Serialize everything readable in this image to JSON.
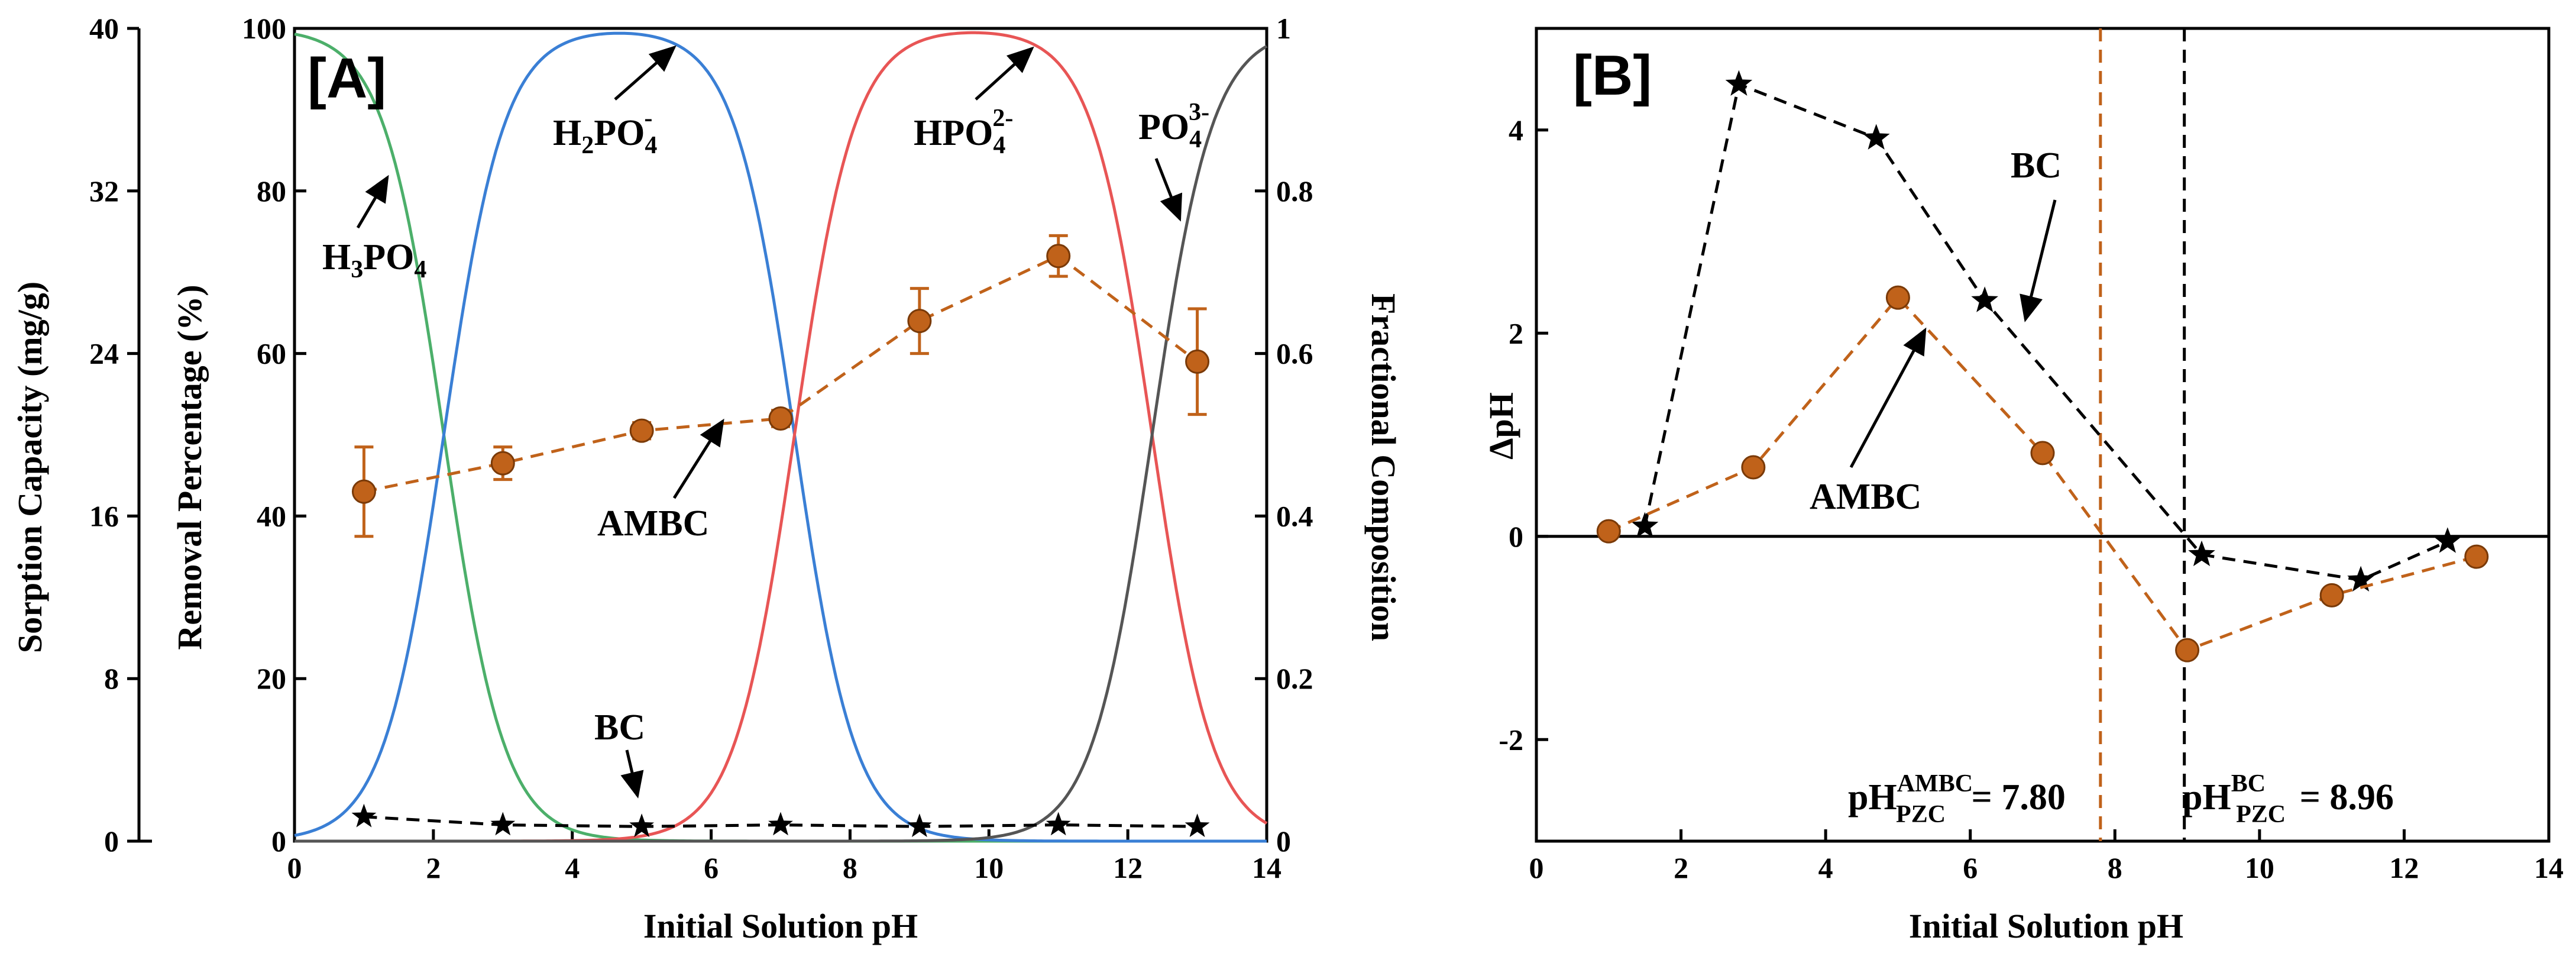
{
  "chart_data": [
    {
      "panel": "A",
      "type": "line",
      "panel_label": "[A]",
      "xlabel": "Initial Solution pH",
      "x_ticks": [
        0,
        2,
        4,
        6,
        8,
        10,
        12,
        14
      ],
      "xlim": [
        0,
        14
      ],
      "y_axes": {
        "sorption": {
          "label": "Sorption Capacity (mg/g)",
          "ticks": [
            0,
            8,
            16,
            24,
            32,
            40
          ],
          "range": [
            0,
            40
          ]
        },
        "removal": {
          "label": "Removal Percentage (%)",
          "ticks": [
            0,
            20,
            40,
            60,
            80,
            100
          ],
          "range": [
            0,
            100
          ]
        },
        "fraction": {
          "label": "Fractional Composition",
          "ticks": [
            0,
            0.2,
            0.4,
            0.6,
            0.8,
            1
          ],
          "range": [
            0,
            1
          ]
        }
      },
      "speciation": {
        "pKa": [
          2.15,
          7.2,
          12.35
        ],
        "species": [
          {
            "name": "H3PO4",
            "color": "#4caf6a"
          },
          {
            "name": "H2PO4-",
            "color": "#3a7fd5"
          },
          {
            "name": "HPO42-",
            "color": "#e85555"
          },
          {
            "name": "PO43-",
            "color": "#555555"
          }
        ]
      },
      "series": [
        {
          "name": "AMBC",
          "color": "#c0621a",
          "axis": "removal",
          "x": [
            1,
            3,
            5,
            7,
            9,
            11,
            13
          ],
          "y": [
            43,
            46.5,
            50.5,
            52,
            64,
            72,
            59
          ],
          "error": [
            5.5,
            2,
            1,
            1,
            4,
            2.5,
            6.5
          ]
        },
        {
          "name": "BC",
          "color": "#000000",
          "axis": "removal",
          "x": [
            1,
            3,
            5,
            7,
            9,
            11,
            13
          ],
          "y": [
            3,
            2,
            1.8,
            2,
            1.8,
            2,
            1.8
          ]
        }
      ],
      "annotations": {
        "h3po4": {
          "main": "H",
          "s1": "3",
          "mid": "PO",
          "s2": "4"
        },
        "h2po4": {
          "main": "H",
          "s1": "2",
          "mid": "PO",
          "s2": "4",
          "sup": "-"
        },
        "hpo4": {
          "main": "HPO",
          "s2": "4",
          "sup": "2-"
        },
        "po4": {
          "main": "PO",
          "s2": "4",
          "sup": "3-"
        },
        "ambc": "AMBC",
        "bc": "BC"
      }
    },
    {
      "panel": "B",
      "type": "line",
      "panel_label": "[B]",
      "xlabel": "Initial Solution pH",
      "ylabel": "ΔpH",
      "x_ticks": [
        0,
        2,
        4,
        6,
        8,
        10,
        12,
        14
      ],
      "y_ticks": [
        -2,
        0,
        2,
        4
      ],
      "xlim": [
        0,
        14
      ],
      "ylim": [
        -3,
        5
      ],
      "series": [
        {
          "name": "BC",
          "color": "#000000",
          "marker": "star",
          "x": [
            1.5,
            2.8,
            4.7,
            6.2,
            9.2,
            11.4,
            12.6
          ],
          "y": [
            0.1,
            4.45,
            3.92,
            2.32,
            -0.18,
            -0.43,
            -0.05
          ]
        },
        {
          "name": "AMBC",
          "color": "#c0621a",
          "marker": "circle",
          "x": [
            1,
            3,
            5,
            7,
            9,
            11,
            13
          ],
          "y": [
            0.05,
            0.68,
            2.35,
            0.82,
            -1.12,
            -0.58,
            -0.2
          ]
        }
      ],
      "vlines": [
        {
          "x": 7.8,
          "color": "#c0621a",
          "label_main": "pH",
          "label_sup": "AMBC",
          "label_sub": "PZC",
          "label_value": " = 7.80"
        },
        {
          "x": 8.96,
          "color": "#000000",
          "label_main": "pH",
          "label_sup": "BC",
          "label_sub": "PZC",
          "label_value": " = 8.96"
        }
      ],
      "annotations": {
        "bc": "BC",
        "ambc": "AMBC"
      }
    }
  ]
}
